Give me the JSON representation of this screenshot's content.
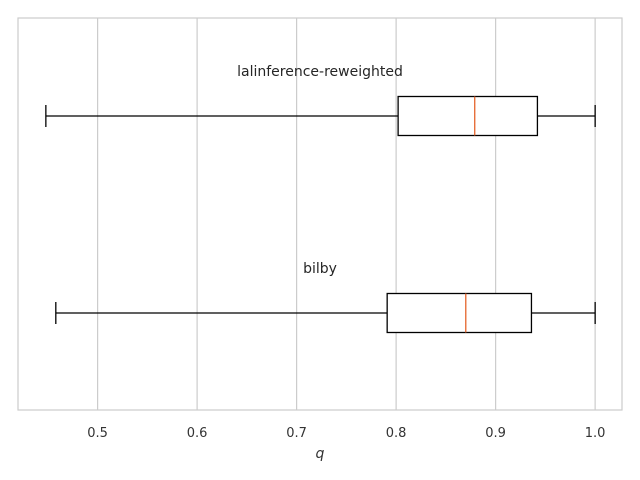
{
  "chart_data": {
    "type": "boxplot",
    "orientation": "horizontal",
    "xlabel": "q",
    "xlim": [
      0.42,
      1.027
    ],
    "xticks": [
      0.5,
      0.6,
      0.7,
      0.8,
      0.9,
      1.0
    ],
    "xtick_labels": [
      "0.5",
      "0.6",
      "0.7",
      "0.8",
      "0.9",
      "1.0"
    ],
    "grid": "vertical",
    "series": [
      {
        "name": "lalinference-reweighted",
        "whisker_low": 0.448,
        "q1": 0.802,
        "median": 0.879,
        "q3": 0.942,
        "whisker_high": 1.0
      },
      {
        "name": "bilby",
        "whisker_low": 0.458,
        "q1": 0.791,
        "median": 0.87,
        "q3": 0.936,
        "whisker_high": 1.0
      }
    ],
    "colors": {
      "box": "#000000",
      "median": "#e5642b",
      "grid": "#cccccc",
      "frame": "#cccccc"
    }
  }
}
